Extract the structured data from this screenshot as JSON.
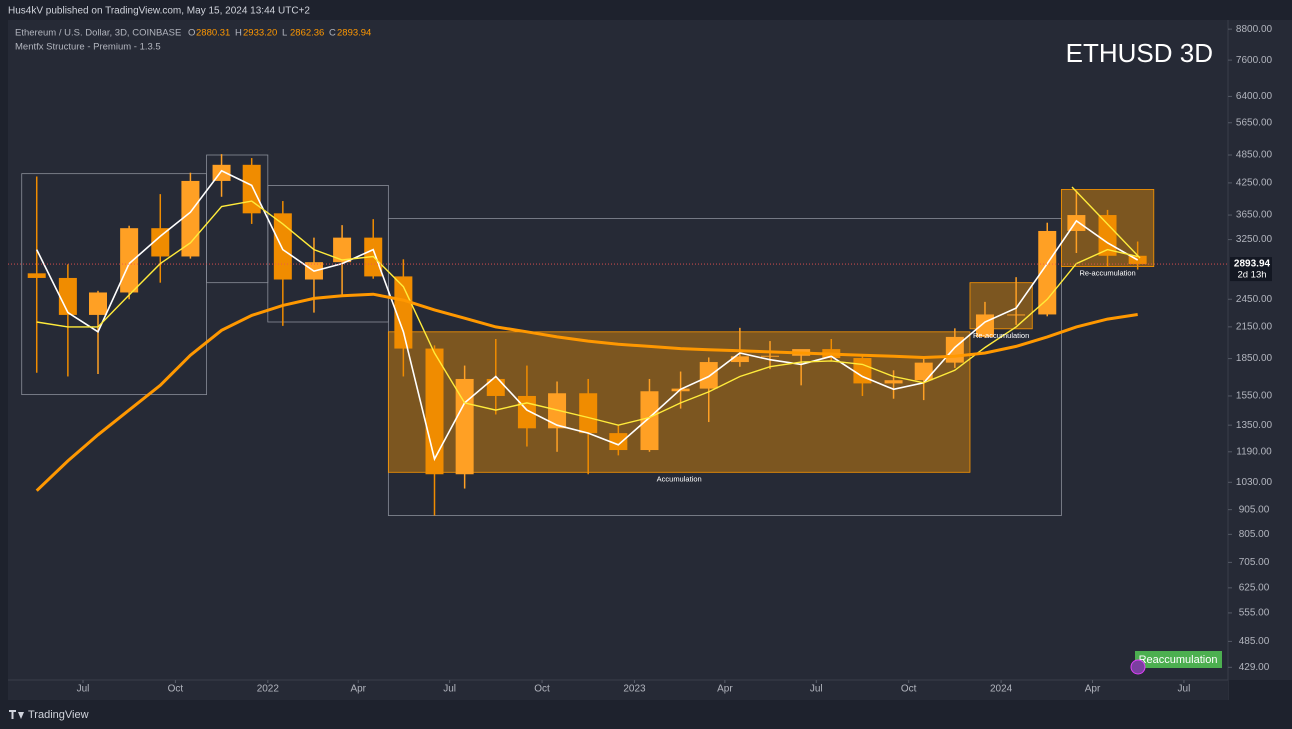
{
  "header": {
    "publisher": "Hus4kV published on TradingView.com, May 15, 2024 13:44 UTC+2",
    "footer": "TradingView"
  },
  "chart_data": {
    "type": "candlestick",
    "title": "ETHUSD 3D",
    "symbol": "Ethereum / U.S. Dollar, 3D, COINBASE",
    "ohlc_readout": [
      {
        "label": "O",
        "value": "2880.31"
      },
      {
        "label": "H",
        "value": "2933.20"
      },
      {
        "label": "L",
        "value": "2862.36"
      },
      {
        "label": "C",
        "value": "2893.94"
      }
    ],
    "indicator": "Mentfx Structure - Premium - 1.3.5",
    "countdown": "2d 13h",
    "badge": "Reaccumulation",
    "log_scale": true,
    "up_color": "#ffa024",
    "down_color": "#f08c00",
    "x": [
      "2021-05",
      "2021-06",
      "2021-07",
      "2021-08",
      "2021-09",
      "2021-10",
      "2021-11",
      "2021-12",
      "2022-01",
      "2022-02",
      "2022-03",
      "2022-04",
      "2022-05",
      "2022-06",
      "2022-07",
      "2022-08",
      "2022-09",
      "2022-10",
      "2022-11",
      "2022-12",
      "2023-01",
      "2023-02",
      "2023-03",
      "2023-04",
      "2023-05",
      "2023-06",
      "2023-07",
      "2023-08",
      "2023-09",
      "2023-10",
      "2023-11",
      "2023-12",
      "2024-01",
      "2024-02",
      "2024-03",
      "2024-04",
      "2024-05"
    ],
    "open": [
      2770,
      2710,
      2275,
      2530,
      3430,
      3000,
      4290,
      4630,
      3680,
      2690,
      2920,
      3280,
      2730,
      1940,
      1070,
      1680,
      1550,
      1330,
      1570,
      1300,
      1200,
      1585,
      1605,
      1820,
      1870,
      1875,
      1935,
      1855,
      1645,
      1670,
      1815,
      2050,
      2280,
      2280,
      3385,
      3650,
      3010
    ],
    "high": [
      4380,
      2890,
      2550,
      3470,
      4030,
      4460,
      4870,
      4780,
      3900,
      3280,
      3480,
      3580,
      2960,
      1970,
      1790,
      2030,
      1790,
      1660,
      1680,
      1350,
      1680,
      1740,
      1860,
      2140,
      2010,
      1930,
      2030,
      1880,
      1750,
      1865,
      2135,
      2420,
      2720,
      3520,
      4100,
      3740,
      3220
    ],
    "low": [
      1730,
      1700,
      1720,
      2450,
      2650,
      2970,
      3980,
      3500,
      2160,
      2300,
      2500,
      2700,
      1700,
      880,
      1000,
      1420,
      1220,
      1190,
      1070,
      1170,
      1190,
      1460,
      1370,
      1780,
      1760,
      1630,
      1830,
      1550,
      1530,
      1520,
      1770,
      2040,
      2170,
      2260,
      3050,
      2860,
      2820
    ],
    "close": [
      2710,
      2275,
      2530,
      3430,
      3000,
      4290,
      4630,
      3680,
      2690,
      2920,
      3280,
      2730,
      1940,
      1070,
      1680,
      1550,
      1330,
      1570,
      1300,
      1200,
      1585,
      1605,
      1820,
      1870,
      1875,
      1935,
      1855,
      1645,
      1670,
      1815,
      2050,
      2280,
      2280,
      3385,
      3650,
      3010,
      2893.94
    ],
    "ma_lines": [
      {
        "color": "#ffffff",
        "width": 1.6,
        "values": [
          3100,
          2300,
          2100,
          2900,
          3300,
          3700,
          4500,
          4200,
          3100,
          2800,
          2900,
          3100,
          2100,
          1150,
          1500,
          1700,
          1450,
          1350,
          1300,
          1230,
          1400,
          1600,
          1700,
          1900,
          1840,
          1800,
          1870,
          1700,
          1600,
          1650,
          1950,
          2200,
          2350,
          2900,
          3550,
          3200,
          2950
        ]
      },
      {
        "color": "#ffeb3b",
        "width": 1.4,
        "values": [
          2200,
          2150,
          2150,
          2500,
          2900,
          3200,
          3800,
          3900,
          3500,
          3100,
          2950,
          3000,
          2600,
          1900,
          1500,
          1450,
          1500,
          1450,
          1400,
          1350,
          1400,
          1500,
          1580,
          1700,
          1780,
          1820,
          1830,
          1800,
          1700,
          1650,
          1750,
          1950,
          2150,
          2450,
          2900,
          3100,
          3000
        ]
      },
      {
        "color": "#ff9800",
        "width": 3,
        "values": [
          990,
          1140,
          1290,
          1450,
          1630,
          1880,
          2115,
          2270,
          2380,
          2460,
          2490,
          2510,
          2440,
          2330,
          2240,
          2150,
          2100,
          2050,
          2010,
          1980,
          1960,
          1940,
          1930,
          1920,
          1910,
          1900,
          1890,
          1880,
          1870,
          1860,
          1870,
          1900,
          1960,
          2050,
          2150,
          2230,
          2280
        ]
      }
    ],
    "zones": [
      {
        "label": "Accumulation",
        "from": "2022-05",
        "to": "2023-12",
        "low": 1080,
        "high": 2100
      },
      {
        "label": "Re-accumulation",
        "from": "2023-12",
        "to": "2024-02",
        "low": 2130,
        "high": 2650
      },
      {
        "label": "Re-accumulation",
        "from": "2024-03",
        "to": "2024-06",
        "low": 2860,
        "high": 4120
      }
    ],
    "structure": [
      {
        "from": "2021-05",
        "to": "2021-11",
        "low": 1560,
        "high": 4440
      },
      {
        "from": "2021-11",
        "to": "2022-01",
        "low": 2650,
        "high": 4850
      },
      {
        "from": "2022-01",
        "to": "2022-05",
        "low": 2200,
        "high": 4200
      },
      {
        "from": "2022-05",
        "to": "2024-03",
        "low": 880,
        "high": 3590
      }
    ],
    "ylim": [
      404,
      9190
    ],
    "yticks": [
      {
        "value": 8800,
        "label": "8800.00"
      },
      {
        "value": 7600,
        "label": "7600.00"
      },
      {
        "value": 6400,
        "label": "6400.00"
      },
      {
        "value": 5650,
        "label": "5650.00"
      },
      {
        "value": 4850,
        "label": "4850.00"
      },
      {
        "value": 4250,
        "label": "4250.00"
      },
      {
        "value": 3650,
        "label": "3650.00"
      },
      {
        "value": 3250,
        "label": "3250.00"
      },
      {
        "value": 2450,
        "label": "2450.00"
      },
      {
        "value": 2150,
        "label": "2150.00"
      },
      {
        "value": 1850,
        "label": "1850.00"
      },
      {
        "value": 1550,
        "label": "1550.00"
      },
      {
        "value": 1350,
        "label": "1350.00"
      },
      {
        "value": 1190,
        "label": "1190.00"
      },
      {
        "value": 1030,
        "label": "1030.00"
      },
      {
        "value": 905,
        "label": "905.00"
      },
      {
        "value": 805,
        "label": "805.00"
      },
      {
        "value": 705,
        "label": "705.00"
      },
      {
        "value": 625,
        "label": "625.00"
      },
      {
        "value": 555,
        "label": "555.00"
      },
      {
        "value": 485,
        "label": "485.00"
      },
      {
        "value": 429,
        "label": "429.00"
      }
    ],
    "xticks": [
      {
        "value": "2021-07",
        "label": "Jul"
      },
      {
        "value": "2021-10",
        "label": "Oct"
      },
      {
        "value": "2022-01",
        "label": "2022"
      },
      {
        "value": "2022-04",
        "label": "Apr"
      },
      {
        "value": "2022-07",
        "label": "Jul"
      },
      {
        "value": "2022-10",
        "label": "Oct"
      },
      {
        "value": "2023-01",
        "label": "2023"
      },
      {
        "value": "2023-04",
        "label": "Apr"
      },
      {
        "value": "2023-07",
        "label": "Jul"
      },
      {
        "value": "2023-10",
        "label": "Oct"
      },
      {
        "value": "2024-01",
        "label": "2024"
      },
      {
        "value": "2024-04",
        "label": "Apr"
      },
      {
        "value": "2024-07",
        "label": "Jul"
      }
    ]
  }
}
